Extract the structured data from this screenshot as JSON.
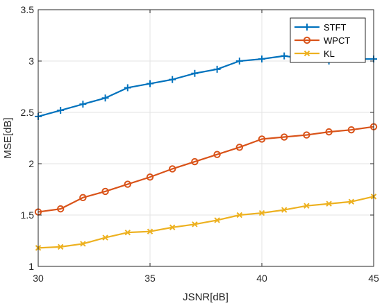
{
  "chart_data": {
    "type": "line",
    "title": "",
    "xlabel": "JSNR[dB]",
    "ylabel": "MSE[dB]",
    "xlim": [
      30,
      45
    ],
    "ylim": [
      1,
      3.5
    ],
    "xticks": [
      30,
      35,
      40,
      45
    ],
    "yticks": [
      1,
      1.5,
      2,
      2.5,
      3,
      3.5
    ],
    "xtick_labels": [
      "30",
      "35",
      "40",
      "45"
    ],
    "ytick_labels": [
      "1",
      "1.5",
      "2",
      "2.5",
      "3",
      "3.5"
    ],
    "grid": true,
    "legend_position": "top-right",
    "x": [
      30,
      31,
      32,
      33,
      34,
      35,
      36,
      37,
      38,
      39,
      40,
      41,
      42,
      43,
      44,
      45
    ],
    "series": [
      {
        "name": "STFT",
        "color": "#0072BD",
        "marker": "plus",
        "values": [
          2.46,
          2.52,
          2.58,
          2.64,
          2.74,
          2.78,
          2.82,
          2.88,
          2.92,
          3.0,
          3.02,
          3.05,
          3.02,
          3.0,
          3.02,
          3.02
        ]
      },
      {
        "name": "WPCT",
        "color": "#D95319",
        "marker": "circle",
        "values": [
          1.53,
          1.56,
          1.67,
          1.73,
          1.8,
          1.87,
          1.95,
          2.02,
          2.09,
          2.16,
          2.24,
          2.26,
          2.28,
          2.31,
          2.33,
          2.36
        ]
      },
      {
        "name": "KL",
        "color": "#EDB120",
        "marker": "x",
        "values": [
          1.18,
          1.19,
          1.22,
          1.28,
          1.33,
          1.34,
          1.38,
          1.41,
          1.45,
          1.5,
          1.52,
          1.55,
          1.59,
          1.61,
          1.63,
          1.68
        ]
      }
    ]
  }
}
